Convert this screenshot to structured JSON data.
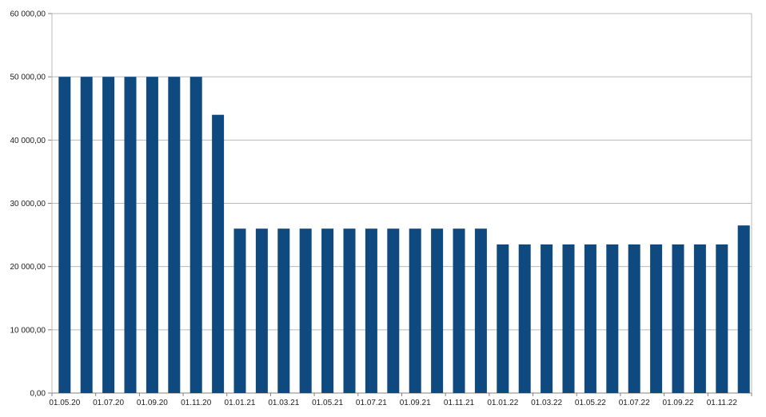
{
  "chart_data": {
    "type": "bar",
    "title": "",
    "xlabel": "",
    "ylabel": "",
    "categories": [
      "01.05.20",
      "01.06.20",
      "01.07.20",
      "01.08.20",
      "01.09.20",
      "01.10.20",
      "01.11.20",
      "01.12.20",
      "01.01.21",
      "01.02.21",
      "01.03.21",
      "01.04.21",
      "01.05.21",
      "01.06.21",
      "01.07.21",
      "01.08.21",
      "01.09.21",
      "01.10.21",
      "01.11.21",
      "01.12.21",
      "01.01.22",
      "01.02.22",
      "01.03.22",
      "01.04.22",
      "01.05.22",
      "01.06.22",
      "01.07.22",
      "01.08.22",
      "01.09.22",
      "01.10.22",
      "01.11.22",
      "01.12.22"
    ],
    "values": [
      50000,
      50000,
      50000,
      50000,
      50000,
      50000,
      50000,
      44000,
      26000,
      26000,
      26000,
      26000,
      26000,
      26000,
      26000,
      26000,
      26000,
      26000,
      26000,
      26000,
      23500,
      23500,
      23500,
      23500,
      23500,
      23500,
      23500,
      23500,
      23500,
      23500,
      23500,
      26500
    ],
    "x_tick_labels": [
      "01.05.20",
      "01.07.20",
      "01.09.20",
      "01.11.20",
      "01.01.21",
      "01.03.21",
      "01.05.21",
      "01.07.21",
      "01.09.21",
      "01.11.21",
      "01.01.22",
      "01.03.22",
      "01.05.22",
      "01.07.22",
      "01.09.22",
      "01.11.22"
    ],
    "label_every": 2,
    "ylim": [
      0,
      60000
    ],
    "y_ticks": [
      0,
      10000,
      20000,
      30000,
      40000,
      50000,
      60000
    ],
    "y_tick_labels": [
      "0,00",
      "10 000,00",
      "20 000,00",
      "30 000,00",
      "40 000,00",
      "50 000,00",
      "60 000,00"
    ],
    "grid": "horizontal",
    "legend": "none",
    "colors": {
      "bar": "#0e4a80",
      "gridline": "#b9b9b9",
      "axis": "#808080",
      "text": "#1c1c1c",
      "background": "#ffffff"
    }
  }
}
